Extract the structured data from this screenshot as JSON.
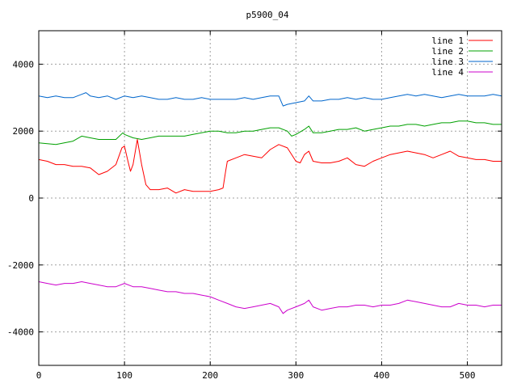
{
  "chart_data": {
    "type": "line",
    "title": "p5900_04",
    "xlabel": "",
    "ylabel": "",
    "xlim": [
      0,
      540
    ],
    "ylim": [
      -5000,
      5000
    ],
    "xticks": [
      0,
      100,
      200,
      300,
      400,
      500
    ],
    "yticks": [
      -4000,
      -2000,
      0,
      2000,
      4000
    ],
    "grid": true,
    "legend_position": "top-right",
    "series": [
      {
        "name": "line 1",
        "color": "#ff0000",
        "points": [
          [
            0,
            1150
          ],
          [
            10,
            1100
          ],
          [
            20,
            1000
          ],
          [
            30,
            1000
          ],
          [
            40,
            950
          ],
          [
            50,
            950
          ],
          [
            60,
            900
          ],
          [
            70,
            700
          ],
          [
            80,
            800
          ],
          [
            90,
            1000
          ],
          [
            97,
            1500
          ],
          [
            100,
            1550
          ],
          [
            104,
            1100
          ],
          [
            107,
            800
          ],
          [
            110,
            1000
          ],
          [
            115,
            1750
          ],
          [
            120,
            1000
          ],
          [
            125,
            400
          ],
          [
            130,
            250
          ],
          [
            140,
            250
          ],
          [
            150,
            300
          ],
          [
            160,
            150
          ],
          [
            170,
            250
          ],
          [
            180,
            200
          ],
          [
            190,
            200
          ],
          [
            200,
            200
          ],
          [
            210,
            250
          ],
          [
            215,
            300
          ],
          [
            218,
            800
          ],
          [
            220,
            1100
          ],
          [
            230,
            1200
          ],
          [
            240,
            1300
          ],
          [
            250,
            1250
          ],
          [
            260,
            1200
          ],
          [
            270,
            1450
          ],
          [
            280,
            1600
          ],
          [
            290,
            1500
          ],
          [
            300,
            1100
          ],
          [
            305,
            1050
          ],
          [
            310,
            1300
          ],
          [
            315,
            1400
          ],
          [
            320,
            1100
          ],
          [
            330,
            1050
          ],
          [
            340,
            1050
          ],
          [
            350,
            1100
          ],
          [
            360,
            1200
          ],
          [
            370,
            1000
          ],
          [
            380,
            950
          ],
          [
            390,
            1100
          ],
          [
            400,
            1200
          ],
          [
            410,
            1300
          ],
          [
            420,
            1350
          ],
          [
            430,
            1400
          ],
          [
            440,
            1350
          ],
          [
            450,
            1300
          ],
          [
            460,
            1200
          ],
          [
            470,
            1300
          ],
          [
            480,
            1400
          ],
          [
            490,
            1250
          ],
          [
            500,
            1200
          ],
          [
            510,
            1150
          ],
          [
            520,
            1150
          ],
          [
            530,
            1100
          ],
          [
            540,
            1100
          ]
        ]
      },
      {
        "name": "line 2",
        "color": "#00a000",
        "points": [
          [
            0,
            1650
          ],
          [
            20,
            1600
          ],
          [
            40,
            1700
          ],
          [
            50,
            1850
          ],
          [
            60,
            1800
          ],
          [
            70,
            1750
          ],
          [
            80,
            1750
          ],
          [
            90,
            1750
          ],
          [
            98,
            1950
          ],
          [
            100,
            1900
          ],
          [
            110,
            1800
          ],
          [
            120,
            1750
          ],
          [
            130,
            1800
          ],
          [
            140,
            1850
          ],
          [
            150,
            1850
          ],
          [
            160,
            1850
          ],
          [
            170,
            1850
          ],
          [
            180,
            1900
          ],
          [
            190,
            1950
          ],
          [
            200,
            2000
          ],
          [
            210,
            2000
          ],
          [
            220,
            1950
          ],
          [
            230,
            1950
          ],
          [
            240,
            2000
          ],
          [
            250,
            2000
          ],
          [
            260,
            2050
          ],
          [
            270,
            2100
          ],
          [
            280,
            2100
          ],
          [
            290,
            2000
          ],
          [
            295,
            1850
          ],
          [
            300,
            1900
          ],
          [
            310,
            2050
          ],
          [
            315,
            2150
          ],
          [
            320,
            1950
          ],
          [
            330,
            1950
          ],
          [
            340,
            2000
          ],
          [
            350,
            2050
          ],
          [
            360,
            2050
          ],
          [
            370,
            2100
          ],
          [
            380,
            2000
          ],
          [
            390,
            2050
          ],
          [
            400,
            2100
          ],
          [
            410,
            2150
          ],
          [
            420,
            2150
          ],
          [
            430,
            2200
          ],
          [
            440,
            2200
          ],
          [
            450,
            2150
          ],
          [
            460,
            2200
          ],
          [
            470,
            2250
          ],
          [
            480,
            2250
          ],
          [
            490,
            2300
          ],
          [
            500,
            2300
          ],
          [
            510,
            2250
          ],
          [
            520,
            2250
          ],
          [
            530,
            2200
          ],
          [
            540,
            2200
          ]
        ]
      },
      {
        "name": "line 3",
        "color": "#0066cc",
        "points": [
          [
            0,
            3050
          ],
          [
            10,
            3000
          ],
          [
            20,
            3050
          ],
          [
            30,
            3000
          ],
          [
            40,
            3000
          ],
          [
            50,
            3100
          ],
          [
            55,
            3150
          ],
          [
            60,
            3050
          ],
          [
            70,
            3000
          ],
          [
            80,
            3050
          ],
          [
            90,
            2950
          ],
          [
            100,
            3050
          ],
          [
            110,
            3000
          ],
          [
            120,
            3050
          ],
          [
            130,
            3000
          ],
          [
            140,
            2950
          ],
          [
            150,
            2950
          ],
          [
            160,
            3000
          ],
          [
            170,
            2950
          ],
          [
            180,
            2950
          ],
          [
            190,
            3000
          ],
          [
            200,
            2950
          ],
          [
            210,
            2950
          ],
          [
            220,
            2950
          ],
          [
            230,
            2950
          ],
          [
            240,
            3000
          ],
          [
            250,
            2950
          ],
          [
            260,
            3000
          ],
          [
            270,
            3050
          ],
          [
            280,
            3050
          ],
          [
            285,
            2750
          ],
          [
            290,
            2800
          ],
          [
            300,
            2850
          ],
          [
            310,
            2900
          ],
          [
            315,
            3050
          ],
          [
            320,
            2900
          ],
          [
            330,
            2900
          ],
          [
            340,
            2950
          ],
          [
            350,
            2950
          ],
          [
            360,
            3000
          ],
          [
            370,
            2950
          ],
          [
            380,
            3000
          ],
          [
            390,
            2950
          ],
          [
            400,
            2950
          ],
          [
            410,
            3000
          ],
          [
            420,
            3050
          ],
          [
            430,
            3100
          ],
          [
            440,
            3050
          ],
          [
            450,
            3100
          ],
          [
            460,
            3050
          ],
          [
            470,
            3000
          ],
          [
            480,
            3050
          ],
          [
            490,
            3100
          ],
          [
            500,
            3050
          ],
          [
            510,
            3050
          ],
          [
            520,
            3050
          ],
          [
            530,
            3100
          ],
          [
            540,
            3050
          ]
        ]
      },
      {
        "name": "line 4",
        "color": "#cc00cc",
        "points": [
          [
            0,
            -2500
          ],
          [
            10,
            -2550
          ],
          [
            20,
            -2600
          ],
          [
            30,
            -2550
          ],
          [
            40,
            -2550
          ],
          [
            50,
            -2500
          ],
          [
            60,
            -2550
          ],
          [
            70,
            -2600
          ],
          [
            80,
            -2650
          ],
          [
            90,
            -2650
          ],
          [
            100,
            -2550
          ],
          [
            110,
            -2650
          ],
          [
            120,
            -2650
          ],
          [
            130,
            -2700
          ],
          [
            140,
            -2750
          ],
          [
            150,
            -2800
          ],
          [
            160,
            -2800
          ],
          [
            170,
            -2850
          ],
          [
            180,
            -2850
          ],
          [
            190,
            -2900
          ],
          [
            200,
            -2950
          ],
          [
            210,
            -3050
          ],
          [
            220,
            -3150
          ],
          [
            230,
            -3250
          ],
          [
            240,
            -3300
          ],
          [
            250,
            -3250
          ],
          [
            260,
            -3200
          ],
          [
            270,
            -3150
          ],
          [
            280,
            -3250
          ],
          [
            285,
            -3450
          ],
          [
            290,
            -3350
          ],
          [
            300,
            -3250
          ],
          [
            310,
            -3150
          ],
          [
            315,
            -3050
          ],
          [
            320,
            -3250
          ],
          [
            330,
            -3350
          ],
          [
            340,
            -3300
          ],
          [
            350,
            -3250
          ],
          [
            360,
            -3250
          ],
          [
            370,
            -3200
          ],
          [
            380,
            -3200
          ],
          [
            390,
            -3250
          ],
          [
            400,
            -3200
          ],
          [
            410,
            -3200
          ],
          [
            420,
            -3150
          ],
          [
            430,
            -3050
          ],
          [
            440,
            -3100
          ],
          [
            450,
            -3150
          ],
          [
            460,
            -3200
          ],
          [
            470,
            -3250
          ],
          [
            480,
            -3250
          ],
          [
            490,
            -3150
          ],
          [
            500,
            -3200
          ],
          [
            510,
            -3200
          ],
          [
            520,
            -3250
          ],
          [
            530,
            -3200
          ],
          [
            540,
            -3200
          ]
        ]
      }
    ]
  }
}
